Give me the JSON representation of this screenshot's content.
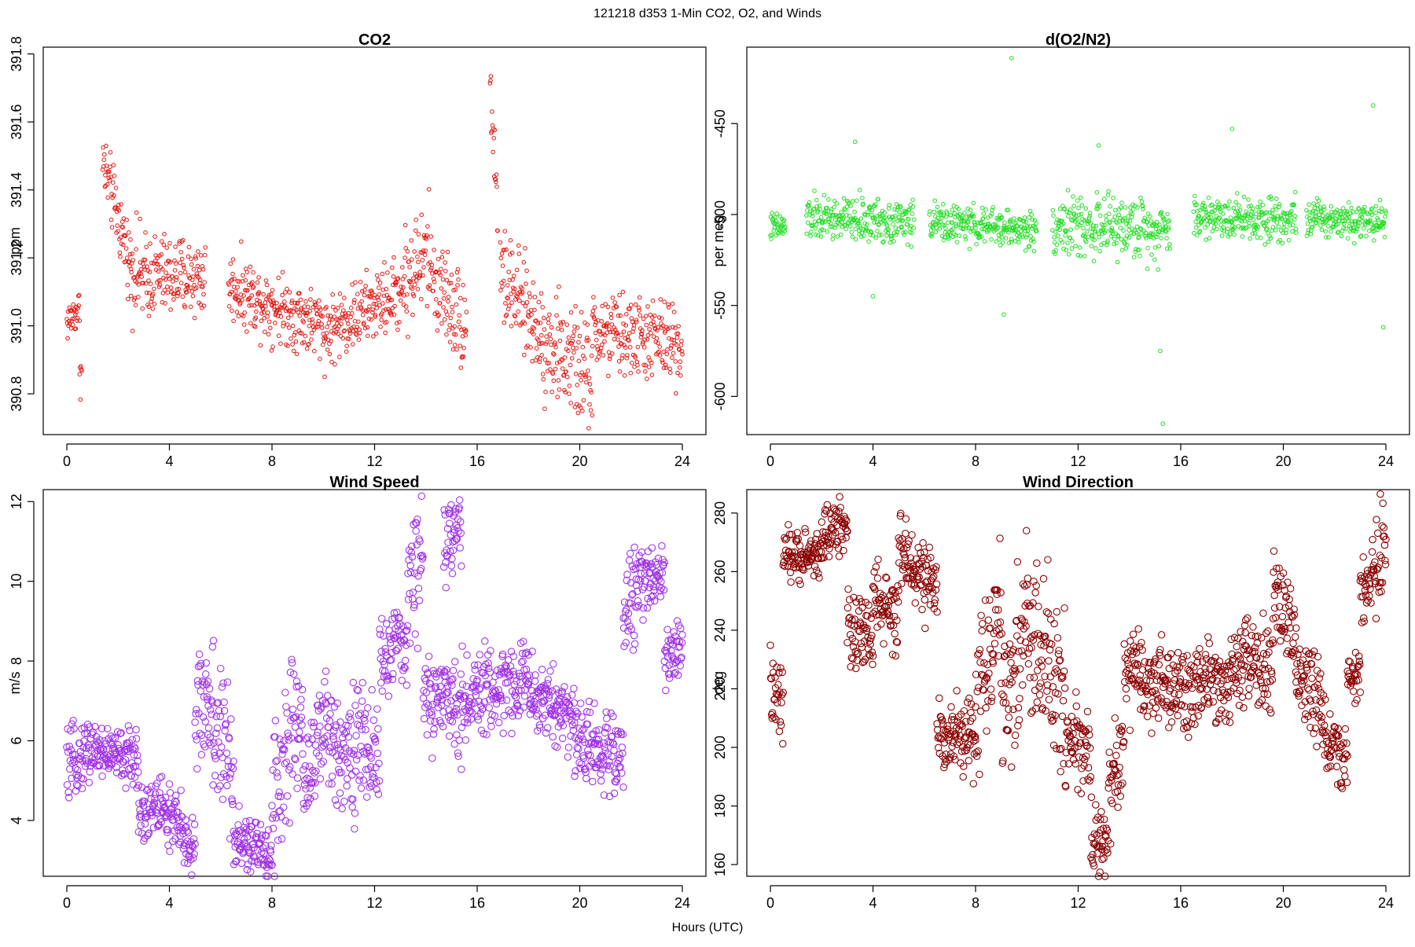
{
  "page": {
    "suptitle": "121218   d353   1-Min CO2, O2, and Winds",
    "xlabel": "Hours (UTC)"
  },
  "chart_data": [
    {
      "type": "scatter",
      "title": "CO2",
      "xlabel": "",
      "ylabel": "ppm",
      "xlim": [
        0,
        24
      ],
      "ylim": [
        390.68,
        391.82
      ],
      "xticks": [
        0,
        4,
        8,
        12,
        16,
        20,
        24
      ],
      "yticks": [
        390.8,
        391.0,
        391.2,
        391.4,
        391.6,
        391.8
      ],
      "ytick_labels": [
        "390.8",
        "391.0",
        "391.2",
        "391.4",
        "391.6",
        "391.8"
      ],
      "marker": "small-circle",
      "color": "#e3140f",
      "segments": [
        [
          0.0,
          0.5,
          391.01,
          391.05,
          0.03
        ],
        [
          0.5,
          0.6,
          390.9,
          390.83,
          0.04
        ],
        [
          1.4,
          2.5,
          391.48,
          391.18,
          0.05
        ],
        [
          2.5,
          3.2,
          391.18,
          391.12,
          0.07
        ],
        [
          3.2,
          5.4,
          391.15,
          391.14,
          0.06
        ],
        [
          6.3,
          8.0,
          391.12,
          391.06,
          0.05
        ],
        [
          8.0,
          10.0,
          391.06,
          391.0,
          0.05
        ],
        [
          10.0,
          11.5,
          390.98,
          391.04,
          0.05
        ],
        [
          11.5,
          13.0,
          391.04,
          391.1,
          0.05
        ],
        [
          13.0,
          14.2,
          391.12,
          391.22,
          0.08
        ],
        [
          14.2,
          15.6,
          391.15,
          391.0,
          0.07
        ],
        [
          16.5,
          16.8,
          391.72,
          391.35,
          0.06
        ],
        [
          16.9,
          18.5,
          391.15,
          390.98,
          0.07
        ],
        [
          18.5,
          20.5,
          390.96,
          390.85,
          0.08
        ],
        [
          20.5,
          24.0,
          390.98,
          390.95,
          0.06
        ]
      ]
    },
    {
      "type": "scatter",
      "title": "d(O2/N2)",
      "xlabel": "",
      "ylabel": "per meg",
      "xlim": [
        0,
        24
      ],
      "ylim": [
        -621,
        -408
      ],
      "xticks": [
        0,
        4,
        8,
        12,
        16,
        20,
        24
      ],
      "yticks": [
        -450,
        -500,
        -550,
        -600
      ],
      "ytick_labels": [
        "-450",
        "-500",
        "-550",
        "-600"
      ],
      "marker": "small-circle",
      "color": "#22dd22",
      "segments": [
        [
          0.0,
          0.6,
          -507,
          -507,
          4
        ],
        [
          1.4,
          5.6,
          -502,
          -504,
          6
        ],
        [
          6.2,
          10.4,
          -504,
          -509,
          5
        ],
        [
          11.0,
          15.6,
          -506,
          -508,
          8
        ],
        [
          16.5,
          20.5,
          -501,
          -502,
          6
        ],
        [
          20.9,
          24.0,
          -502,
          -503,
          5
        ]
      ],
      "outliers": [
        [
          9.4,
          -414
        ],
        [
          15.3,
          -615
        ],
        [
          23.5,
          -440
        ],
        [
          3.3,
          -460
        ],
        [
          12.8,
          -462
        ],
        [
          18.0,
          -453
        ],
        [
          15.2,
          -575
        ],
        [
          23.9,
          -562
        ],
        [
          9.1,
          -555
        ],
        [
          4.0,
          -545
        ]
      ]
    },
    {
      "type": "scatter",
      "title": "Wind Speed",
      "xlabel": "",
      "ylabel": "m/s",
      "xlim": [
        0,
        24
      ],
      "ylim": [
        2.6,
        12.3
      ],
      "xticks": [
        0,
        4,
        8,
        12,
        16,
        20,
        24
      ],
      "yticks": [
        4,
        6,
        8,
        10,
        12
      ],
      "ytick_labels": [
        "4",
        "6",
        "8",
        "10",
        "12"
      ],
      "marker": "circle",
      "color": "#a033e6",
      "segments": [
        [
          0.0,
          1.0,
          5.3,
          5.9,
          0.4
        ],
        [
          1.0,
          2.8,
          5.8,
          5.5,
          0.35
        ],
        [
          2.8,
          3.8,
          4.2,
          4.4,
          0.4
        ],
        [
          3.8,
          5.0,
          4.2,
          3.3,
          0.45
        ],
        [
          5.0,
          5.5,
          6.5,
          7.2,
          0.7
        ],
        [
          5.5,
          6.5,
          7.0,
          5.0,
          1.0
        ],
        [
          6.5,
          8.0,
          3.5,
          3.2,
          0.35
        ],
        [
          8.0,
          9.2,
          4.5,
          6.8,
          1.0
        ],
        [
          9.2,
          10.2,
          5.0,
          6.5,
          0.7
        ],
        [
          10.2,
          12.2,
          6.0,
          5.7,
          0.8
        ],
        [
          12.2,
          13.3,
          8.0,
          8.5,
          0.5
        ],
        [
          13.3,
          13.9,
          9.5,
          11.0,
          0.8
        ],
        [
          13.9,
          15.5,
          7.0,
          7.0,
          0.6
        ],
        [
          14.7,
          15.4,
          11.0,
          11.3,
          0.5
        ],
        [
          15.5,
          18.0,
          7.0,
          7.6,
          0.5
        ],
        [
          18.0,
          19.8,
          7.2,
          6.6,
          0.5
        ],
        [
          19.8,
          21.7,
          6.0,
          5.6,
          0.5
        ],
        [
          21.7,
          22.2,
          9.0,
          9.8,
          0.6
        ],
        [
          22.2,
          23.3,
          10.0,
          10.3,
          0.4
        ],
        [
          23.3,
          24.0,
          8.0,
          8.5,
          0.4
        ]
      ]
    },
    {
      "type": "scatter",
      "title": "Wind Direction",
      "xlabel": "",
      "ylabel": "deg",
      "xlim": [
        0,
        24
      ],
      "ylim": [
        156,
        288
      ],
      "xticks": [
        0,
        4,
        8,
        12,
        16,
        20,
        24
      ],
      "yticks": [
        160,
        180,
        200,
        220,
        240,
        260,
        280
      ],
      "ytick_labels": [
        "160",
        "180",
        "200",
        "220",
        "240",
        "260",
        "280"
      ],
      "marker": "circle",
      "color": "#8b0000",
      "segments": [
        [
          0.0,
          0.5,
          220,
          212,
          8
        ],
        [
          0.5,
          2.0,
          265,
          266,
          4
        ],
        [
          2.0,
          3.0,
          272,
          278,
          5
        ],
        [
          3.0,
          4.0,
          240,
          236,
          7
        ],
        [
          4.0,
          5.0,
          252,
          242,
          6
        ],
        [
          5.0,
          6.5,
          268,
          252,
          6
        ],
        [
          6.5,
          8.0,
          205,
          203,
          6
        ],
        [
          8.0,
          9.0,
          215,
          248,
          12
        ],
        [
          9.0,
          10.0,
          205,
          245,
          15
        ],
        [
          10.0,
          11.5,
          240,
          215,
          15
        ],
        [
          11.5,
          12.5,
          205,
          198,
          8
        ],
        [
          12.5,
          13.2,
          168,
          170,
          7
        ],
        [
          13.2,
          13.8,
          185,
          200,
          8
        ],
        [
          13.8,
          15.5,
          225,
          220,
          8
        ],
        [
          15.5,
          18.5,
          218,
          225,
          7
        ],
        [
          18.5,
          19.6,
          230,
          225,
          8
        ],
        [
          19.6,
          20.5,
          255,
          235,
          8
        ],
        [
          20.5,
          21.5,
          228,
          215,
          8
        ],
        [
          21.5,
          22.5,
          205,
          195,
          6
        ],
        [
          22.5,
          23.0,
          223,
          224,
          4
        ],
        [
          23.0,
          24.0,
          250,
          270,
          8
        ]
      ]
    }
  ]
}
